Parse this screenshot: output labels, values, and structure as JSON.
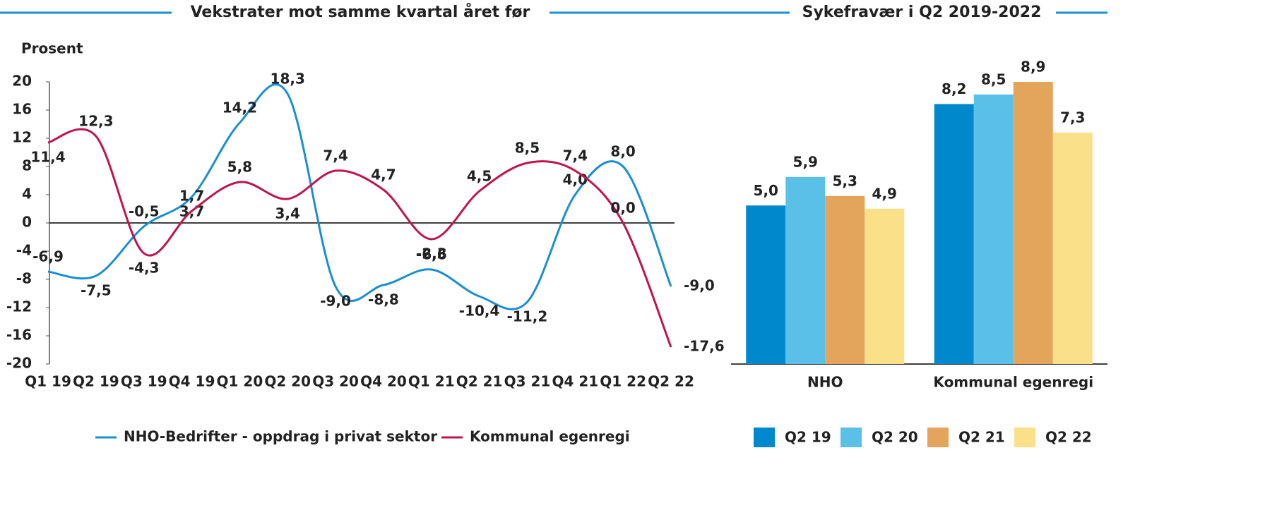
{
  "chart_data": [
    {
      "type": "line",
      "title": "Vekstrater mot samme kvartal året før",
      "y_label": "Prosent",
      "categories": [
        "Q1 19",
        "Q2 19",
        "Q3 19",
        "Q4 19",
        "Q1 20",
        "Q2 20",
        "Q3 20",
        "Q4 20",
        "Q1 21",
        "Q2 21",
        "Q3 21",
        "Q4 21",
        "Q1 22",
        "Q2 22"
      ],
      "series": [
        {
          "name": "NHO-Bedrifter  - oppdrag  i privat sektor",
          "color": "#1a8fd0",
          "values": [
            -6.9,
            -7.5,
            -0.5,
            3.7,
            14.2,
            18.3,
            -9.0,
            -8.8,
            -6.6,
            -10.4,
            -11.2,
            4.0,
            8.0,
            -9.0
          ],
          "value_labels": [
            "-6,9",
            "-7,5",
            "-0,5",
            "3,7",
            "14,2",
            "18,3",
            "-9,0",
            "-8,8",
            "-6,6",
            "-10,4",
            "-11,2",
            "4,0",
            "8,0",
            "-9,0"
          ]
        },
        {
          "name": "Kommunal  egenregi",
          "color": "#c0144c",
          "values": [
            11.4,
            12.3,
            -4.3,
            1.7,
            5.8,
            3.4,
            7.4,
            4.7,
            -2.3,
            4.5,
            8.5,
            7.4,
            0.0,
            -17.6
          ],
          "value_labels": [
            "11,4",
            "12,3",
            "-4,3",
            "1,7",
            "5,8",
            "3,4",
            "7,4",
            "4,7",
            "-2,3",
            "4,5",
            "8,5",
            "7,4",
            "0,0",
            "-17,6"
          ]
        }
      ],
      "ylim": [
        -20,
        20
      ],
      "yticks": [
        -20,
        -16,
        -12,
        -8,
        -4,
        0,
        4,
        8,
        12,
        16,
        20
      ],
      "grid": false
    },
    {
      "type": "bar",
      "title": "Sykefravær i Q2 2019-2022",
      "categories": [
        "NHO",
        "Kommunal  egenregi"
      ],
      "series": [
        {
          "name": "Q2 19",
          "color": "#0088cc",
          "values": [
            5.0,
            8.2
          ],
          "value_labels": [
            "5,0",
            "8,2"
          ]
        },
        {
          "name": "Q2 20",
          "color": "#5bc0e8",
          "values": [
            5.9,
            8.5
          ],
          "value_labels": [
            "5,9",
            "8,5"
          ]
        },
        {
          "name": "Q2 21",
          "color": "#e3a45c",
          "values": [
            5.3,
            8.9
          ],
          "value_labels": [
            "5,3",
            "8,9"
          ]
        },
        {
          "name": "Q2 22",
          "color": "#fbe08a",
          "values": [
            4.9,
            7.3
          ],
          "value_labels": [
            "4,9",
            "7,3"
          ]
        }
      ]
    }
  ]
}
